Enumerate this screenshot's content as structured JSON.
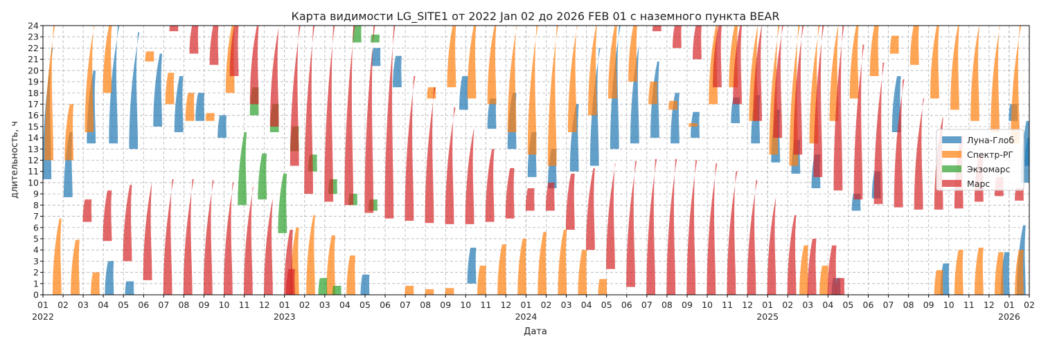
{
  "chart_data": {
    "type": "area",
    "title": "Карта видимости LG_SITE1 от 2022 Jan 02 до 2026 FEB 01 с наземного пункта BEAR",
    "xlabel": "Дата",
    "ylabel": "длительность, ч",
    "ylim": [
      0,
      24
    ],
    "y_ticks": [
      0,
      1,
      2,
      3,
      4,
      5,
      6,
      7,
      8,
      9,
      10,
      11,
      12,
      13,
      14,
      15,
      16,
      17,
      18,
      19,
      20,
      21,
      22,
      23,
      24
    ],
    "xlim_months": [
      0,
      49
    ],
    "x_ticks": [
      {
        "m": 0,
        "label": "01",
        "year": "2022"
      },
      {
        "m": 1,
        "label": "02"
      },
      {
        "m": 2,
        "label": "03"
      },
      {
        "m": 3,
        "label": "04"
      },
      {
        "m": 4,
        "label": "05"
      },
      {
        "m": 5,
        "label": "06"
      },
      {
        "m": 6,
        "label": "07"
      },
      {
        "m": 7,
        "label": "08"
      },
      {
        "m": 8,
        "label": "09"
      },
      {
        "m": 9,
        "label": "10"
      },
      {
        "m": 10,
        "label": "11"
      },
      {
        "m": 11,
        "label": "12"
      },
      {
        "m": 12,
        "label": "01",
        "year": "2023"
      },
      {
        "m": 13,
        "label": "02"
      },
      {
        "m": 14,
        "label": "03"
      },
      {
        "m": 15,
        "label": "04"
      },
      {
        "m": 16,
        "label": "05"
      },
      {
        "m": 17,
        "label": "06"
      },
      {
        "m": 18,
        "label": "07"
      },
      {
        "m": 19,
        "label": "08"
      },
      {
        "m": 20,
        "label": "09"
      },
      {
        "m": 21,
        "label": "10"
      },
      {
        "m": 22,
        "label": "11"
      },
      {
        "m": 23,
        "label": "12"
      },
      {
        "m": 24,
        "label": "01",
        "year": "2024"
      },
      {
        "m": 25,
        "label": "02"
      },
      {
        "m": 26,
        "label": "03"
      },
      {
        "m": 27,
        "label": "04"
      },
      {
        "m": 28,
        "label": "05"
      },
      {
        "m": 29,
        "label": "06"
      },
      {
        "m": 30,
        "label": "07"
      },
      {
        "m": 31,
        "label": "08"
      },
      {
        "m": 32,
        "label": "09"
      },
      {
        "m": 33,
        "label": "10"
      },
      {
        "m": 34,
        "label": "11"
      },
      {
        "m": 35,
        "label": "12"
      },
      {
        "m": 36,
        "label": "01",
        "year": "2025"
      },
      {
        "m": 37,
        "label": "02"
      },
      {
        "m": 38,
        "label": "03"
      },
      {
        "m": 39,
        "label": "04"
      },
      {
        "m": 40,
        "label": "05"
      },
      {
        "m": 41,
        "label": "06"
      },
      {
        "m": 42,
        "label": "07"
      },
      {
        "m": 43,
        "label": "08"
      },
      {
        "m": 44,
        "label": "09"
      },
      {
        "m": 45,
        "label": "10"
      },
      {
        "m": 46,
        "label": "11"
      },
      {
        "m": 47,
        "label": "12"
      },
      {
        "m": 48,
        "label": "01",
        "year": "2026"
      },
      {
        "m": 49,
        "label": "02"
      }
    ],
    "grid": true,
    "legend_position": "right",
    "series": [
      {
        "name": "Луна-Глоб",
        "color": "#1f77b4",
        "opacity": 0.7,
        "segments": [
          [
            0.2,
            10.3,
            22.0
          ],
          [
            1.25,
            8.7,
            14.5
          ],
          [
            2.4,
            13.5,
            20.0
          ],
          [
            3.5,
            13.5,
            24.0
          ],
          [
            4.5,
            13.0,
            23.4
          ],
          [
            5.7,
            15.0,
            21.5
          ],
          [
            6.75,
            14.5,
            19.5
          ],
          [
            7.8,
            15.5,
            18.0
          ],
          [
            8.9,
            14.0,
            16.0
          ],
          [
            16.55,
            20.4,
            22.0
          ],
          [
            17.6,
            18.5,
            21.3
          ],
          [
            20.9,
            16.5,
            19.5
          ],
          [
            21.3,
            1.0,
            4.2
          ],
          [
            22.3,
            14.8,
            17.5
          ],
          [
            23.3,
            13.0,
            18.0
          ],
          [
            24.3,
            10.5,
            14.5
          ],
          [
            25.3,
            9.5,
            13.0
          ],
          [
            26.4,
            11.0,
            17.0
          ],
          [
            27.4,
            11.5,
            22.0
          ],
          [
            28.4,
            13.0,
            24.0
          ],
          [
            29.4,
            13.5,
            22.5
          ],
          [
            30.4,
            14.0,
            20.8
          ],
          [
            31.4,
            13.5,
            18.0
          ],
          [
            32.4,
            14.0,
            16.3
          ],
          [
            34.4,
            15.3,
            17.6
          ],
          [
            35.4,
            13.5,
            17.8
          ],
          [
            36.4,
            11.8,
            16.5
          ],
          [
            37.4,
            10.8,
            13.8
          ],
          [
            38.4,
            9.5,
            12.5
          ],
          [
            39.4,
            0.0,
            1.5
          ],
          [
            40.4,
            7.5,
            9.0
          ],
          [
            41.4,
            8.6,
            11.0
          ],
          [
            42.4,
            14.5,
            19.5
          ],
          [
            48.2,
            15.5,
            17.0
          ],
          [
            48.8,
            10.0,
            15.5
          ],
          [
            49.0,
            11.5,
            14.0
          ],
          [
            3.3,
            0.0,
            3.0
          ],
          [
            4.3,
            0.0,
            1.2
          ],
          [
            16.0,
            0.0,
            1.8
          ],
          [
            44.8,
            0.0,
            2.8
          ],
          [
            47.8,
            0.0,
            3.8
          ],
          [
            48.6,
            0.0,
            6.2
          ]
        ]
      },
      {
        "name": "Спектр-РГ",
        "color": "#ff7f0e",
        "opacity": 0.7,
        "segments": [
          [
            0.3,
            12.0,
            24.0
          ],
          [
            1.3,
            12.0,
            17.0
          ],
          [
            2.3,
            14.5,
            24.0
          ],
          [
            3.2,
            18.0,
            24.0
          ],
          [
            5.3,
            20.8,
            21.7
          ],
          [
            6.3,
            17.0,
            19.8
          ],
          [
            7.3,
            15.5,
            18.0
          ],
          [
            8.3,
            15.5,
            16.2
          ],
          [
            9.3,
            18.0,
            24.0
          ],
          [
            0.7,
            0.0,
            6.8
          ],
          [
            1.6,
            0.0,
            4.9
          ],
          [
            2.6,
            0.0,
            2.0
          ],
          [
            13.3,
            0.0,
            7.1
          ],
          [
            14.3,
            0.0,
            5.3
          ],
          [
            15.3,
            0.0,
            3.5
          ],
          [
            19.3,
            17.5,
            18.5
          ],
          [
            20.3,
            18.5,
            24.0
          ],
          [
            21.3,
            17.5,
            24.0
          ],
          [
            22.3,
            17.0,
            24.0
          ],
          [
            23.3,
            14.5,
            24.0
          ],
          [
            24.3,
            12.5,
            24.0
          ],
          [
            25.3,
            11.5,
            24.0
          ],
          [
            26.3,
            14.5,
            24.0
          ],
          [
            27.3,
            16.0,
            24.0
          ],
          [
            28.3,
            17.5,
            24.0
          ],
          [
            29.3,
            19.0,
            24.0
          ],
          [
            30.3,
            17.0,
            19.0
          ],
          [
            31.3,
            16.5,
            17.3
          ],
          [
            32.3,
            15.0,
            15.3
          ],
          [
            33.3,
            17.0,
            24.0
          ],
          [
            34.3,
            18.5,
            24.0
          ],
          [
            35.3,
            15.5,
            24.0
          ],
          [
            36.3,
            12.5,
            24.0
          ],
          [
            37.3,
            11.5,
            24.0
          ],
          [
            38.3,
            13.5,
            24.0
          ],
          [
            39.3,
            15.5,
            24.0
          ],
          [
            40.3,
            17.5,
            24.0
          ],
          [
            41.3,
            19.5,
            24.0
          ],
          [
            42.3,
            21.5,
            23.1
          ],
          [
            43.3,
            20.5,
            24.0
          ],
          [
            44.3,
            17.5,
            24.0
          ],
          [
            45.3,
            16.5,
            24.0
          ],
          [
            46.3,
            15.5,
            24.0
          ],
          [
            47.3,
            14.5,
            24.0
          ],
          [
            48.3,
            13.5,
            24.0
          ],
          [
            12.5,
            0.0,
            6.0
          ],
          [
            21.8,
            0.0,
            2.6
          ],
          [
            22.8,
            0.0,
            4.5
          ],
          [
            23.8,
            0.0,
            5.0
          ],
          [
            24.8,
            0.0,
            5.6
          ],
          [
            25.8,
            0.0,
            5.8
          ],
          [
            26.8,
            0.0,
            4.0
          ],
          [
            27.8,
            0.0,
            1.4
          ],
          [
            37.8,
            0.0,
            4.4
          ],
          [
            38.8,
            0.0,
            2.6
          ],
          [
            44.5,
            0.0,
            2.2
          ],
          [
            45.5,
            0.0,
            4.0
          ],
          [
            46.5,
            0.0,
            4.2
          ],
          [
            47.5,
            0.0,
            3.8
          ],
          [
            48.5,
            0.0,
            4.0
          ],
          [
            18.2,
            0.0,
            0.8
          ],
          [
            19.2,
            0.0,
            0.5
          ],
          [
            20.2,
            0.0,
            0.6
          ]
        ]
      },
      {
        "name": "Экзомарс",
        "color": "#2ca02c",
        "opacity": 0.7,
        "segments": [
          [
            9.9,
            8.0,
            14.5
          ],
          [
            10.9,
            8.5,
            12.6
          ],
          [
            11.9,
            5.5,
            10.8
          ],
          [
            13.4,
            11.0,
            12.5
          ],
          [
            14.4,
            9.0,
            10.3
          ],
          [
            15.4,
            8.0,
            9.0
          ],
          [
            16.4,
            7.5,
            8.5
          ],
          [
            16.8,
            24.0,
            24.0
          ],
          [
            13.9,
            0.0,
            1.5
          ],
          [
            14.6,
            0.0,
            0.8
          ],
          [
            15.6,
            22.5,
            24.0
          ],
          [
            16.5,
            22.5,
            23.2
          ],
          [
            10.5,
            16.0,
            18.5
          ],
          [
            11.5,
            14.5,
            17.0
          ],
          [
            12.5,
            12.8,
            15.0
          ]
        ]
      },
      {
        "name": "Марс",
        "color": "#d62728",
        "opacity": 0.7,
        "segments": [
          [
            2.2,
            6.5,
            8.5
          ],
          [
            3.2,
            4.8,
            9.3
          ],
          [
            4.2,
            3.0,
            9.8
          ],
          [
            5.2,
            1.3,
            10.1
          ],
          [
            6.2,
            0.0,
            10.3
          ],
          [
            7.2,
            0.0,
            10.3
          ],
          [
            8.2,
            0.0,
            10.2
          ],
          [
            9.2,
            0.0,
            10.0
          ],
          [
            10.2,
            0.0,
            9.6
          ],
          [
            11.2,
            0.0,
            8.5
          ],
          [
            12.2,
            0.0,
            5.8
          ],
          [
            12.3,
            0.0,
            2.3
          ],
          [
            13.2,
            9.0,
            24.0
          ],
          [
            14.2,
            8.3,
            24.0
          ],
          [
            15.2,
            8.0,
            24.0
          ],
          [
            16.2,
            7.3,
            24.0
          ],
          [
            17.2,
            6.8,
            24.0
          ],
          [
            18.2,
            6.6,
            19.5
          ],
          [
            19.2,
            6.4,
            18.5
          ],
          [
            20.2,
            6.3,
            16.7
          ],
          [
            21.2,
            6.3,
            14.8
          ],
          [
            22.2,
            6.5,
            13.0
          ],
          [
            23.2,
            6.8,
            11.3
          ],
          [
            24.2,
            7.5,
            9.5
          ],
          [
            25.2,
            7.5,
            10.0
          ],
          [
            26.2,
            5.8,
            10.8
          ],
          [
            27.2,
            4.0,
            11.3
          ],
          [
            28.2,
            2.3,
            11.7
          ],
          [
            29.2,
            0.7,
            11.9
          ],
          [
            30.2,
            0.0,
            12.1
          ],
          [
            31.2,
            0.0,
            12.1
          ],
          [
            32.2,
            0.0,
            12.0
          ],
          [
            33.2,
            0.0,
            11.7
          ],
          [
            34.2,
            0.0,
            11.0
          ],
          [
            35.2,
            0.0,
            10.2
          ],
          [
            36.2,
            0.0,
            8.8
          ],
          [
            37.2,
            0.0,
            7.1
          ],
          [
            38.2,
            0.0,
            5.0
          ],
          [
            39.2,
            0.0,
            4.4
          ],
          [
            39.6,
            0.0,
            1.5
          ],
          [
            6.5,
            23.5,
            24.0
          ],
          [
            7.5,
            21.5,
            24.0
          ],
          [
            8.5,
            20.5,
            24.0
          ],
          [
            9.5,
            19.5,
            24.0
          ],
          [
            10.5,
            17.0,
            24.0
          ],
          [
            11.5,
            15.0,
            24.0
          ],
          [
            12.5,
            11.5,
            24.0
          ],
          [
            30.5,
            23.5,
            24.0
          ],
          [
            31.5,
            22.0,
            24.0
          ],
          [
            32.5,
            21.0,
            24.0
          ],
          [
            33.5,
            18.5,
            24.0
          ],
          [
            34.5,
            17.0,
            24.0
          ],
          [
            35.5,
            15.5,
            24.0
          ],
          [
            36.5,
            14.0,
            24.0
          ],
          [
            37.5,
            12.5,
            24.0
          ],
          [
            38.5,
            10.5,
            24.0
          ],
          [
            39.5,
            9.3,
            24.0
          ],
          [
            40.5,
            8.5,
            22.3
          ],
          [
            41.5,
            8.1,
            20.7
          ],
          [
            42.5,
            7.8,
            19.2
          ],
          [
            43.5,
            7.6,
            17.5
          ],
          [
            44.5,
            7.6,
            15.8
          ],
          [
            45.5,
            7.7,
            14.2
          ],
          [
            46.5,
            8.3,
            12.5
          ],
          [
            47.5,
            8.8,
            10.5
          ],
          [
            48.5,
            8.4,
            9.5
          ]
        ]
      }
    ]
  }
}
